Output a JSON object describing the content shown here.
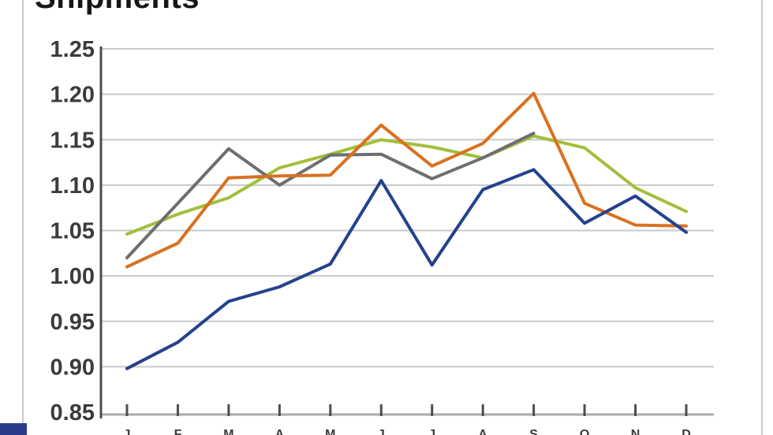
{
  "page": {
    "border_color": "#c9c9cb",
    "corner_color": "#2b3b8c"
  },
  "chart_data": {
    "type": "line",
    "title": "Shipments",
    "xlabel": "",
    "ylabel": "",
    "categories": [
      "J",
      "F",
      "M",
      "A",
      "M",
      "J",
      "J",
      "A",
      "S",
      "O",
      "N",
      "D"
    ],
    "ylim": [
      0.85,
      1.25
    ],
    "ytick_step": 0.05,
    "ytick_labels": [
      "1.25",
      "1.20",
      "1.15",
      "1.10",
      "1.05",
      "1.00",
      "0.95",
      "0.90",
      "0.85"
    ],
    "series": [
      {
        "name": "green",
        "color": "#a2bf3b",
        "values": [
          1.046,
          1.068,
          1.086,
          1.119,
          1.134,
          1.15,
          1.142,
          1.13,
          1.154,
          1.141,
          1.097,
          1.071
        ]
      },
      {
        "name": "gray",
        "color": "#6d6e71",
        "values": [
          1.02,
          1.08,
          1.14,
          1.1,
          1.133,
          1.134,
          1.107,
          1.13,
          1.157,
          null,
          null,
          null
        ]
      },
      {
        "name": "orange",
        "color": "#d9711f",
        "values": [
          1.01,
          1.036,
          1.108,
          1.11,
          1.111,
          1.166,
          1.121,
          1.146,
          1.201,
          1.08,
          1.056,
          1.055
        ]
      },
      {
        "name": "blue",
        "color": "#24418e",
        "values": [
          0.898,
          0.927,
          0.972,
          0.988,
          1.013,
          1.105,
          1.012,
          1.095,
          1.117,
          1.058,
          1.088,
          1.048
        ]
      }
    ],
    "layout": {
      "grid": true,
      "legend": "none",
      "grid_color": "#c9cacc",
      "axis_color": "#4d4d4f",
      "bottom_axis_color": "#a9abad",
      "tick_color": "#4d4d4f",
      "ylabel_color": "#3b3b3d",
      "xlabel_color": "#3b3b3d",
      "line_width": 4
    }
  }
}
